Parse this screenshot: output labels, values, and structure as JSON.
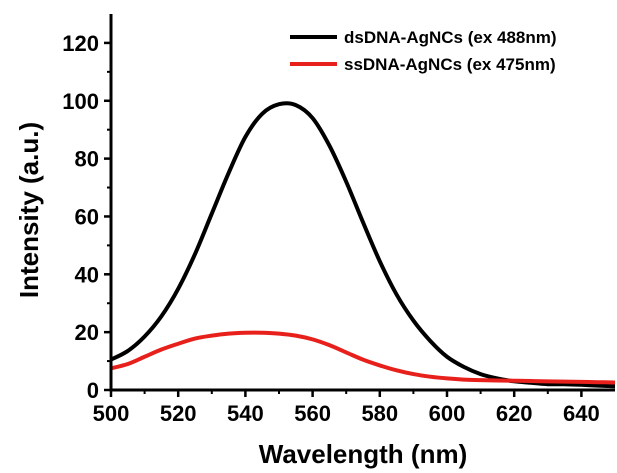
{
  "chart_data": {
    "type": "line",
    "title": "",
    "xlabel": "Wavelength (nm)",
    "ylabel": "Intensity (a.u.)",
    "xlim": [
      500,
      650
    ],
    "ylim": [
      0,
      130
    ],
    "xticks": [
      500,
      520,
      540,
      560,
      580,
      600,
      620,
      640
    ],
    "yticks": [
      0,
      20,
      40,
      60,
      80,
      100,
      120
    ],
    "legend_position": "top-right",
    "grid": false,
    "x": [
      500,
      505,
      510,
      515,
      520,
      525,
      530,
      535,
      540,
      545,
      550,
      555,
      560,
      565,
      570,
      575,
      580,
      585,
      590,
      595,
      600,
      605,
      610,
      615,
      620,
      625,
      630,
      635,
      640,
      645,
      650
    ],
    "series": [
      {
        "name": "dsDNA-AgNCs (ex 488nm)",
        "color": "#000000",
        "values": [
          10.5,
          13.5,
          18.5,
          25.5,
          35,
          47,
          61,
          75,
          87.5,
          95.5,
          98.8,
          98.5,
          94,
          84.5,
          72,
          58,
          44.5,
          33,
          24,
          17,
          11.5,
          8,
          5.5,
          4,
          3,
          2.5,
          2,
          2,
          1.8,
          1.5,
          1.3
        ]
      },
      {
        "name": "ssDNA-AgNCs (ex 475nm)",
        "color": "#e8201c",
        "values": [
          7.5,
          9,
          11.5,
          14,
          16,
          17.8,
          18.8,
          19.5,
          19.8,
          19.8,
          19.5,
          18.8,
          17.5,
          15.5,
          13,
          10.5,
          8.5,
          6.8,
          5.5,
          4.6,
          4,
          3.6,
          3.4,
          3.3,
          3.2,
          3.1,
          3,
          2.9,
          2.8,
          2.7,
          2.6
        ]
      }
    ]
  }
}
